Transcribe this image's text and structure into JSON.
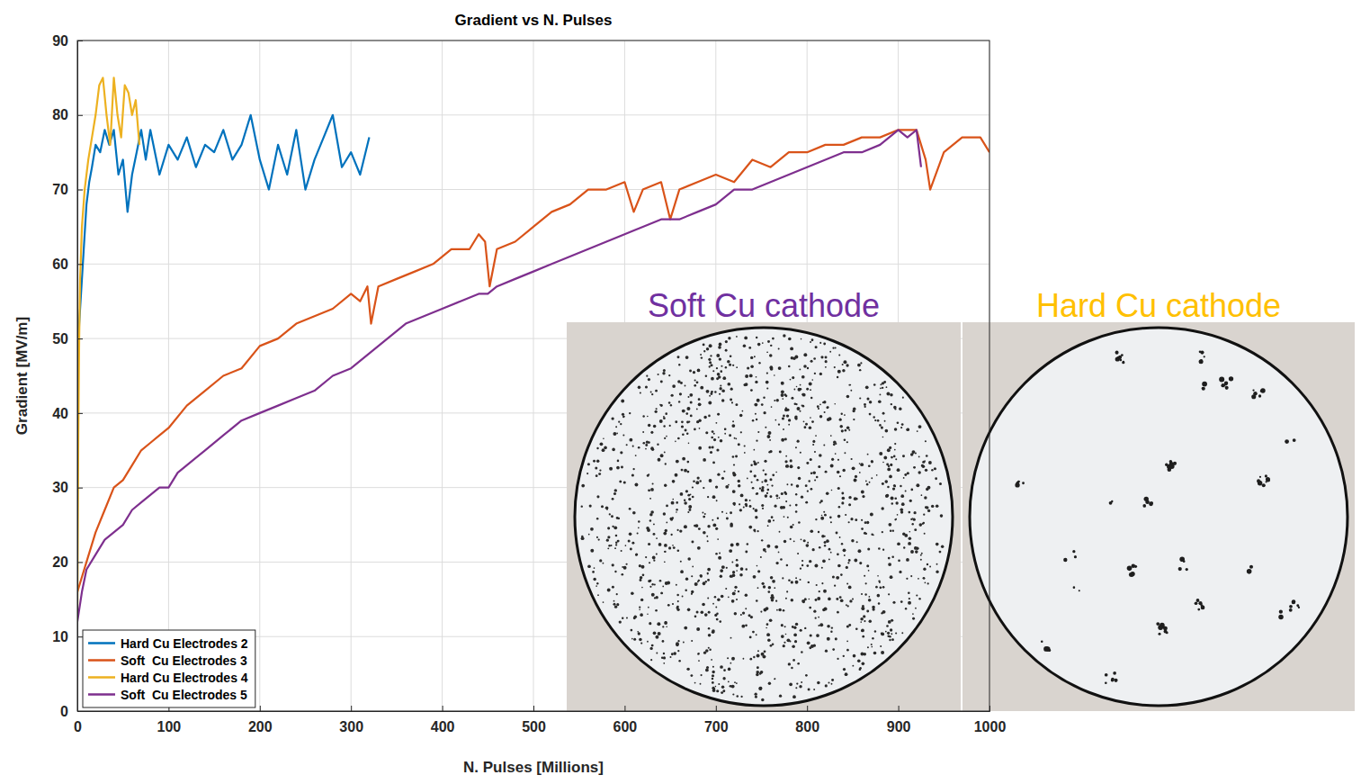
{
  "chart_data": {
    "type": "line",
    "title": "Gradient vs N. Pulses",
    "x_label": "N. Pulses [Millions]",
    "y_label": "Gradient [MV/m]",
    "xlim": [
      0,
      1000
    ],
    "ylim": [
      0,
      90
    ],
    "xticks": [
      0,
      100,
      200,
      300,
      400,
      500,
      600,
      700,
      800,
      900,
      1000
    ],
    "yticks": [
      0,
      10,
      20,
      30,
      40,
      50,
      60,
      70,
      80,
      90
    ],
    "grid": true,
    "legend": "lower left",
    "series": [
      {
        "name": "Hard Cu Electrodes 2",
        "color": "#0072bd",
        "x": [
          0,
          2,
          4,
          6,
          8,
          10,
          13,
          16,
          20,
          25,
          30,
          35,
          40,
          45,
          50,
          55,
          60,
          65,
          70,
          75,
          80,
          90,
          100,
          110,
          120,
          130,
          140,
          150,
          160,
          170,
          180,
          190,
          200,
          210,
          220,
          230,
          240,
          250,
          260,
          270,
          280,
          290,
          300,
          310,
          320
        ],
        "values": [
          45,
          52,
          56,
          60,
          64,
          68,
          71,
          73,
          76,
          75,
          78,
          76,
          78,
          72,
          74,
          67,
          72,
          75,
          78,
          74,
          78,
          72,
          76,
          74,
          77,
          73,
          76,
          75,
          78,
          74,
          76,
          80,
          74,
          70,
          76,
          72,
          78,
          70,
          74,
          77,
          80,
          73,
          75,
          72,
          77
        ]
      },
      {
        "name": "Soft  Cu Electrodes 3",
        "color": "#d95319",
        "x": [
          0,
          5,
          10,
          20,
          30,
          40,
          50,
          60,
          70,
          80,
          90,
          100,
          120,
          140,
          160,
          180,
          200,
          220,
          240,
          260,
          280,
          300,
          310,
          318,
          322,
          330,
          350,
          370,
          390,
          410,
          430,
          440,
          447,
          452,
          460,
          480,
          500,
          520,
          540,
          560,
          580,
          600,
          610,
          620,
          640,
          650,
          660,
          680,
          700,
          720,
          740,
          760,
          780,
          800,
          820,
          840,
          860,
          880,
          900,
          920,
          930,
          935,
          950,
          970,
          990,
          1000
        ],
        "values": [
          16,
          18,
          20,
          24,
          27,
          30,
          31,
          33,
          35,
          36,
          37,
          38,
          41,
          43,
          45,
          46,
          49,
          50,
          52,
          53,
          54,
          56,
          55,
          57,
          52,
          57,
          58,
          59,
          60,
          62,
          62,
          64,
          63,
          57,
          62,
          63,
          65,
          67,
          68,
          70,
          70,
          71,
          67,
          70,
          71,
          66,
          70,
          71,
          72,
          71,
          74,
          73,
          75,
          75,
          76,
          76,
          77,
          77,
          78,
          78,
          74,
          70,
          75,
          77,
          77,
          75
        ]
      },
      {
        "name": "Hard Cu Electrodes 4",
        "color": "#edb120",
        "x": [
          0,
          1,
          2,
          3,
          5,
          8,
          12,
          16,
          20,
          24,
          28,
          32,
          36,
          40,
          44,
          48,
          52,
          56,
          60,
          64,
          68
        ],
        "values": [
          13,
          36,
          50,
          58,
          65,
          70,
          74,
          77,
          80,
          84,
          85,
          80,
          76,
          85,
          80,
          77,
          84,
          83,
          80,
          82,
          76
        ]
      },
      {
        "name": "Soft  Cu Electrodes 5",
        "color": "#7e2f8e",
        "x": [
          0,
          5,
          10,
          20,
          30,
          40,
          50,
          60,
          70,
          80,
          90,
          100,
          110,
          120,
          140,
          160,
          180,
          200,
          220,
          240,
          260,
          280,
          300,
          320,
          340,
          360,
          380,
          400,
          420,
          440,
          450,
          460,
          480,
          500,
          520,
          540,
          560,
          580,
          600,
          620,
          640,
          660,
          680,
          700,
          720,
          740,
          760,
          780,
          800,
          820,
          840,
          860,
          880,
          900,
          910,
          920,
          925
        ],
        "values": [
          12,
          16,
          19,
          21,
          23,
          24,
          25,
          27,
          28,
          29,
          30,
          30,
          32,
          33,
          35,
          37,
          39,
          40,
          41,
          42,
          43,
          45,
          46,
          48,
          50,
          52,
          53,
          54,
          55,
          56,
          56,
          57,
          58,
          59,
          60,
          61,
          62,
          63,
          64,
          65,
          66,
          66,
          67,
          68,
          70,
          70,
          71,
          72,
          73,
          74,
          75,
          75,
          76,
          78,
          77,
          78,
          73
        ]
      }
    ],
    "annotations": [
      {
        "text": "Soft Cu cathode",
        "color": "#7030a0"
      },
      {
        "text": "Hard Cu cathode",
        "color": "#ffc000"
      }
    ]
  }
}
